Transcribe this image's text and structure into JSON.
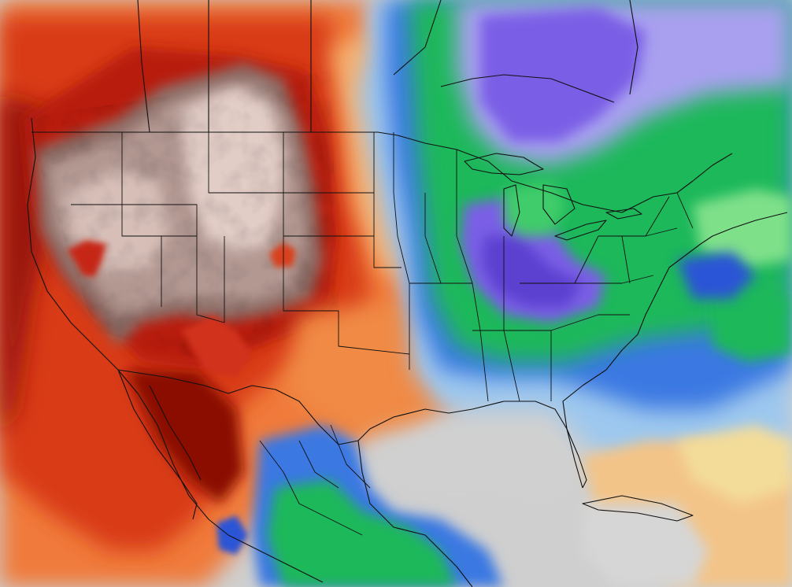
{
  "map": {
    "type": "weather-model-field",
    "region": "North America",
    "legend_shown": false,
    "labels_shown": false,
    "palette": {
      "extreme_dry": "#e6d3cd",
      "very_dry": "#a58a84",
      "brown_mid": "#7b5a54",
      "dark_red": "#8a1006",
      "red": "#c42a0c",
      "red_orange": "#e2481a",
      "orange": "#f07a3a",
      "light_orange": "#f6b070",
      "pale_yellow": "#f3dc9a",
      "neutral_gray": "#d0d0d0",
      "light_blue": "#9ec8ee",
      "blue": "#3a78e2",
      "royal_blue": "#2a55d6",
      "green": "#1fb85a",
      "light_green": "#7fe08a",
      "lavender": "#a9a0f0",
      "violet": "#7a5ee6",
      "deep_violet": "#5b3fd0",
      "boundary_lines": "#111111"
    },
    "regions": [
      {
        "name": "intermountain-west",
        "category": "extreme_dry"
      },
      {
        "name": "west-coast-and-pacific",
        "category": "red"
      },
      {
        "name": "southern-plains",
        "category": "orange"
      },
      {
        "name": "mississippi-valley",
        "category": "blue"
      },
      {
        "name": "great-lakes-ohio-valley",
        "category": "violet"
      },
      {
        "name": "appalachians-southeast",
        "category": "green"
      },
      {
        "name": "northeast",
        "category": "green"
      },
      {
        "name": "gulf-of-mexico",
        "category": "neutral_gray"
      },
      {
        "name": "western-atlantic",
        "category": "light_blue"
      },
      {
        "name": "central-america",
        "category": "green"
      },
      {
        "name": "caribbean",
        "category": "pale_yellow"
      }
    ]
  }
}
